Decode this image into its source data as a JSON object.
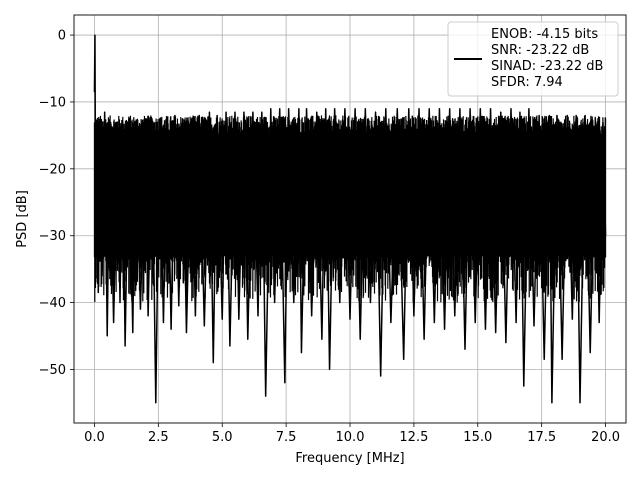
{
  "chart_data": {
    "type": "line",
    "xlabel": "Frequency [MHz]",
    "ylabel": "PSD [dB]",
    "xlim": [
      -0.8,
      20.8
    ],
    "ylim": [
      -58,
      3
    ],
    "xticks": [
      0.0,
      2.5,
      5.0,
      7.5,
      10.0,
      12.5,
      15.0,
      17.5,
      20.0
    ],
    "xtick_labels": [
      "0.0",
      "2.5",
      "5.0",
      "7.5",
      "10.0",
      "12.5",
      "15.0",
      "17.5",
      "20.0"
    ],
    "yticks": [
      0,
      -10,
      -20,
      -30,
      -40,
      -50
    ],
    "ytick_labels": [
      "0",
      "−10",
      "−20",
      "−30",
      "−40",
      "−50"
    ],
    "grid": true,
    "legend_position": "top-right",
    "series": [
      {
        "name": "ENOB: -4.15 bits\nSNR: -23.22 dB\nSINAD: -23.22 dB\nSFDR: 7.94",
        "color": "#000000",
        "points": [
          [
            0.0,
            -8.5
          ],
          [
            0.02,
            0.0
          ],
          [
            0.04,
            -22.0
          ],
          [
            0.06,
            -33.0
          ],
          [
            0.1,
            -16.0
          ],
          [
            0.15,
            -38.5
          ],
          [
            0.2,
            -14.0
          ],
          [
            0.3,
            -36.0
          ],
          [
            0.4,
            -11.5
          ],
          [
            0.5,
            -45.0
          ],
          [
            0.6,
            -14.0
          ],
          [
            0.75,
            -43.0
          ],
          [
            0.9,
            -13.0
          ],
          [
            1.0,
            -40.0
          ],
          [
            1.1,
            -13.0
          ],
          [
            1.2,
            -46.5
          ],
          [
            1.35,
            -12.5
          ],
          [
            1.5,
            -44.5
          ],
          [
            1.6,
            -13.0
          ],
          [
            1.8,
            -41.0
          ],
          [
            2.0,
            -12.5
          ],
          [
            2.1,
            -42.0
          ],
          [
            2.25,
            -12.5
          ],
          [
            2.4,
            -55.0
          ],
          [
            2.55,
            -12.5
          ],
          [
            2.7,
            -43.0
          ],
          [
            2.85,
            -12.5
          ],
          [
            3.0,
            -44.0
          ],
          [
            3.15,
            -12.0
          ],
          [
            3.3,
            -40.5
          ],
          [
            3.45,
            -12.5
          ],
          [
            3.6,
            -44.5
          ],
          [
            3.8,
            -12.5
          ],
          [
            3.95,
            -42.0
          ],
          [
            4.1,
            -12.0
          ],
          [
            4.3,
            -43.5
          ],
          [
            4.5,
            -11.5
          ],
          [
            4.65,
            -49.0
          ],
          [
            4.8,
            -12.0
          ],
          [
            5.0,
            -42.5
          ],
          [
            5.15,
            -11.5
          ],
          [
            5.3,
            -46.5
          ],
          [
            5.5,
            -11.5
          ],
          [
            5.65,
            -42.5
          ],
          [
            5.85,
            -11.5
          ],
          [
            6.0,
            -45.5
          ],
          [
            6.2,
            -11.5
          ],
          [
            6.4,
            -42.0
          ],
          [
            6.55,
            -11.5
          ],
          [
            6.7,
            -54.0
          ],
          [
            6.9,
            -11.0
          ],
          [
            7.05,
            -40.0
          ],
          [
            7.25,
            -11.0
          ],
          [
            7.45,
            -52.0
          ],
          [
            7.6,
            -11.0
          ],
          [
            7.8,
            -40.0
          ],
          [
            8.0,
            -11.0
          ],
          [
            8.1,
            -47.5
          ],
          [
            8.3,
            -11.0
          ],
          [
            8.5,
            -42.0
          ],
          [
            8.7,
            -11.5
          ],
          [
            8.9,
            -45.5
          ],
          [
            9.05,
            -11.0
          ],
          [
            9.2,
            -50.0
          ],
          [
            9.4,
            -11.0
          ],
          [
            9.6,
            -40.0
          ],
          [
            9.8,
            -11.0
          ],
          [
            10.0,
            -42.5
          ],
          [
            10.2,
            -11.0
          ],
          [
            10.4,
            -45.5
          ],
          [
            10.6,
            -11.0
          ],
          [
            10.8,
            -40.0
          ],
          [
            11.0,
            -11.5
          ],
          [
            11.2,
            -51.0
          ],
          [
            11.4,
            -11.0
          ],
          [
            11.6,
            -43.0
          ],
          [
            11.85,
            -11.0
          ],
          [
            12.1,
            -48.5
          ],
          [
            12.3,
            -11.0
          ],
          [
            12.5,
            -42.0
          ],
          [
            12.7,
            -11.0
          ],
          [
            12.9,
            -45.5
          ],
          [
            13.1,
            -11.0
          ],
          [
            13.3,
            -43.0
          ],
          [
            13.5,
            -11.0
          ],
          [
            13.7,
            -44.0
          ],
          [
            13.9,
            -11.0
          ],
          [
            14.1,
            -42.0
          ],
          [
            14.3,
            -11.0
          ],
          [
            14.5,
            -47.0
          ],
          [
            14.7,
            -11.0
          ],
          [
            14.9,
            -43.0
          ],
          [
            15.1,
            -11.0
          ],
          [
            15.3,
            -44.0
          ],
          [
            15.5,
            -11.0
          ],
          [
            15.7,
            -44.5
          ],
          [
            15.9,
            -11.5
          ],
          [
            16.1,
            -46.0
          ],
          [
            16.3,
            -11.0
          ],
          [
            16.5,
            -43.0
          ],
          [
            16.65,
            -11.5
          ],
          [
            16.8,
            -52.5
          ],
          [
            17.0,
            -11.0
          ],
          [
            17.2,
            -43.5
          ],
          [
            17.4,
            -12.0
          ],
          [
            17.6,
            -48.5
          ],
          [
            17.8,
            -12.0
          ],
          [
            17.9,
            -55.0
          ],
          [
            18.1,
            -12.0
          ],
          [
            18.3,
            -48.5
          ],
          [
            18.5,
            -12.0
          ],
          [
            18.7,
            -42.5
          ],
          [
            18.85,
            -12.0
          ],
          [
            19.0,
            -55.0
          ],
          [
            19.2,
            -12.0
          ],
          [
            19.4,
            -47.5
          ],
          [
            19.6,
            -12.5
          ],
          [
            19.75,
            -43.0
          ],
          [
            19.9,
            -13.0
          ],
          [
            20.0,
            -30.0
          ]
        ],
        "noise": {
          "x": [
            0.0,
            20.0
          ],
          "floor": -33.0,
          "top": -13.5,
          "depth": -40.0
        }
      }
    ]
  }
}
